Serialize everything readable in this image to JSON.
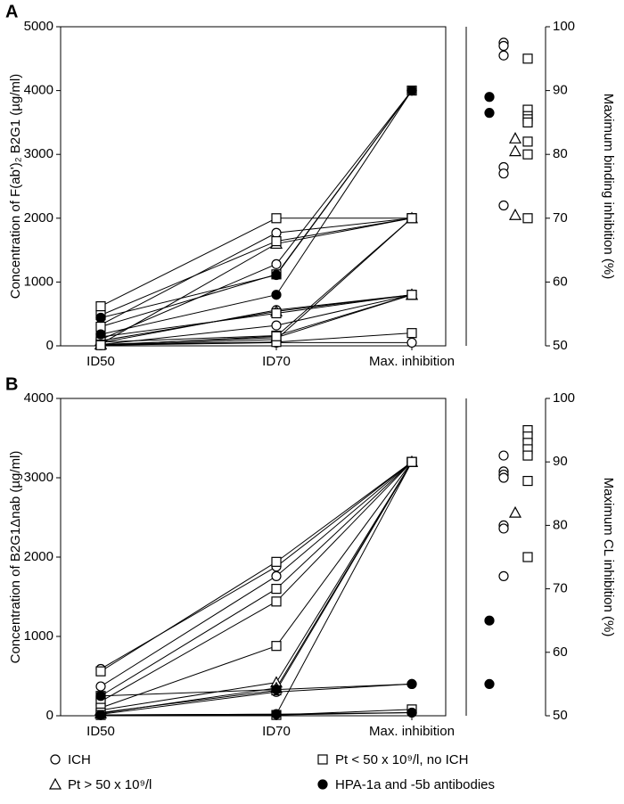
{
  "panel_labels": [
    "A",
    "B"
  ],
  "legend": [
    {
      "name": "ICH",
      "marker": "open-circle"
    },
    {
      "name": "Pt > 50 x 10⁹/l",
      "marker": "open-triangle"
    },
    {
      "name": "Pt < 50 x 10⁹/l, no ICH",
      "marker": "open-square"
    },
    {
      "name": "HPA-1a and -5b antibodies",
      "marker": "filled-circle"
    }
  ],
  "chart_data": [
    {
      "type": "line",
      "y_label": "Concentration of F(ab')₂ B2G1 (µg/ml)",
      "categories": [
        "ID50",
        "ID70",
        "Max. inhibition"
      ],
      "ylim": [
        0,
        5000
      ],
      "yticks": [
        0,
        1000,
        2000,
        3000,
        4000,
        5000
      ],
      "groups": [
        {
          "lines": [
            [
              330,
              1770,
              2000
            ],
            [
              100,
              1280,
              4000
            ],
            [
              50,
              560,
              800
            ],
            [
              20,
              320,
              800
            ],
            [
              10,
              100,
              2000
            ],
            [
              10,
              50,
              50
            ]
          ]
        },
        {
          "lines": [
            [
              30,
              1600,
              2000
            ],
            [
              80,
              540,
              800
            ],
            [
              20,
              130,
              800
            ]
          ]
        },
        {
          "lines": [
            [
              620,
              2000,
              2000
            ],
            [
              480,
              1640,
              2000
            ],
            [
              300,
              1120,
              4000
            ],
            [
              140,
              510,
              800
            ],
            [
              60,
              160,
              800
            ],
            [
              20,
              60,
              200
            ],
            [
              10,
              150,
              2000
            ]
          ]
        },
        {
          "lines": [
            [
              440,
              1110,
              4000
            ],
            [
              180,
              800,
              4000
            ]
          ]
        }
      ]
    },
    {
      "type": "strip",
      "y_label": "Maximum binding inhibition (%)",
      "ylim": [
        50,
        100
      ],
      "yticks": [
        50,
        60,
        70,
        80,
        90,
        100
      ],
      "groups": [
        {
          "values": [
            97.5,
            97,
            95.5,
            78,
            77,
            72
          ]
        },
        {
          "values": [
            82.5,
            80.5,
            70.5
          ]
        },
        {
          "values": [
            95,
            87,
            86,
            85.5,
            85,
            82,
            80,
            70
          ]
        },
        {
          "values": [
            89,
            86.5
          ]
        }
      ]
    },
    {
      "type": "line",
      "y_label": "Concentration of B2G1Δnab (µg/ml)",
      "categories": [
        "ID50",
        "ID70",
        "Max. inhibition"
      ],
      "ylim": [
        0,
        4000
      ],
      "yticks": [
        0,
        1000,
        2000,
        3000,
        4000
      ],
      "groups": [
        {
          "lines": [
            [
              590,
              1880,
              3200
            ],
            [
              370,
              1760,
              3200
            ],
            [
              20,
              300,
              400
            ],
            [
              10,
              20,
              3200
            ],
            [
              10,
              10,
              40
            ]
          ]
        },
        {
          "lines": [
            [
              70,
              420,
              3200
            ],
            [
              30,
              350,
              3200
            ]
          ]
        },
        {
          "lines": [
            [
              560,
              1940,
              3200
            ],
            [
              250,
              1600,
              3200
            ],
            [
              180,
              1440,
              3200
            ],
            [
              100,
              880,
              3200
            ],
            [
              40,
              320,
              3200
            ],
            [
              10,
              10,
              80
            ]
          ]
        },
        {
          "lines": [
            [
              250,
              330,
              400
            ],
            [
              10,
              20,
              40
            ]
          ]
        }
      ]
    },
    {
      "type": "strip",
      "y_label": "Maximum CL inhibition (%)",
      "ylim": [
        50,
        100
      ],
      "yticks": [
        50,
        60,
        70,
        80,
        90,
        100
      ],
      "groups": [
        {
          "values": [
            91,
            88.5,
            88,
            87.5,
            80,
            79.5,
            72
          ]
        },
        {
          "values": [
            82
          ]
        },
        {
          "values": [
            95,
            94,
            93,
            92,
            91,
            87,
            75
          ]
        },
        {
          "values": [
            65,
            55
          ]
        }
      ]
    }
  ]
}
